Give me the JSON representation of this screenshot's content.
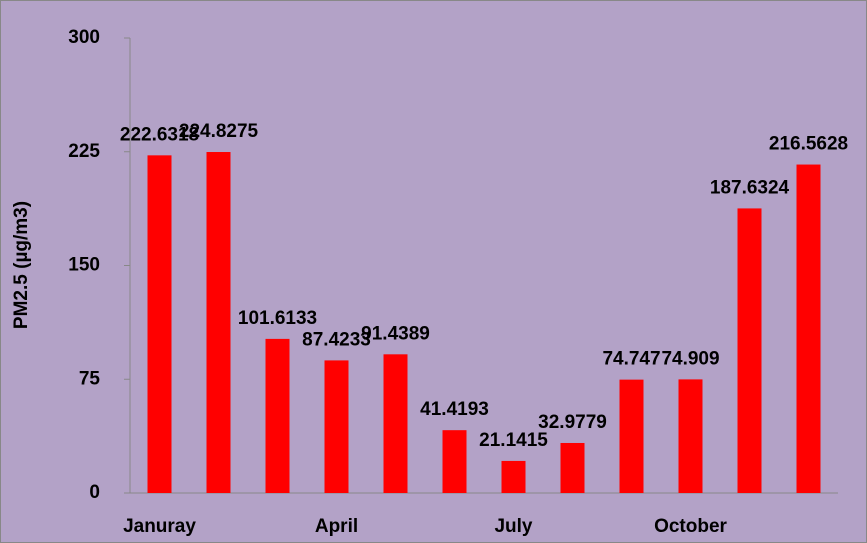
{
  "chart_data": {
    "type": "bar",
    "y_label": "PM2.5 (µg/m3)",
    "categories": [
      "Januray",
      null,
      null,
      "April",
      null,
      null,
      "July",
      null,
      null,
      "October",
      null,
      null
    ],
    "values": [
      222.6318,
      224.8275,
      101.6133,
      87.4233,
      91.4389,
      41.4193,
      21.1415,
      32.9779,
      74.747,
      74.909,
      187.6324,
      216.5628
    ],
    "color": "#ff0000",
    "ylim": [
      0,
      300
    ],
    "yticks": [
      0,
      75,
      150,
      225,
      300
    ],
    "grid": false
  }
}
